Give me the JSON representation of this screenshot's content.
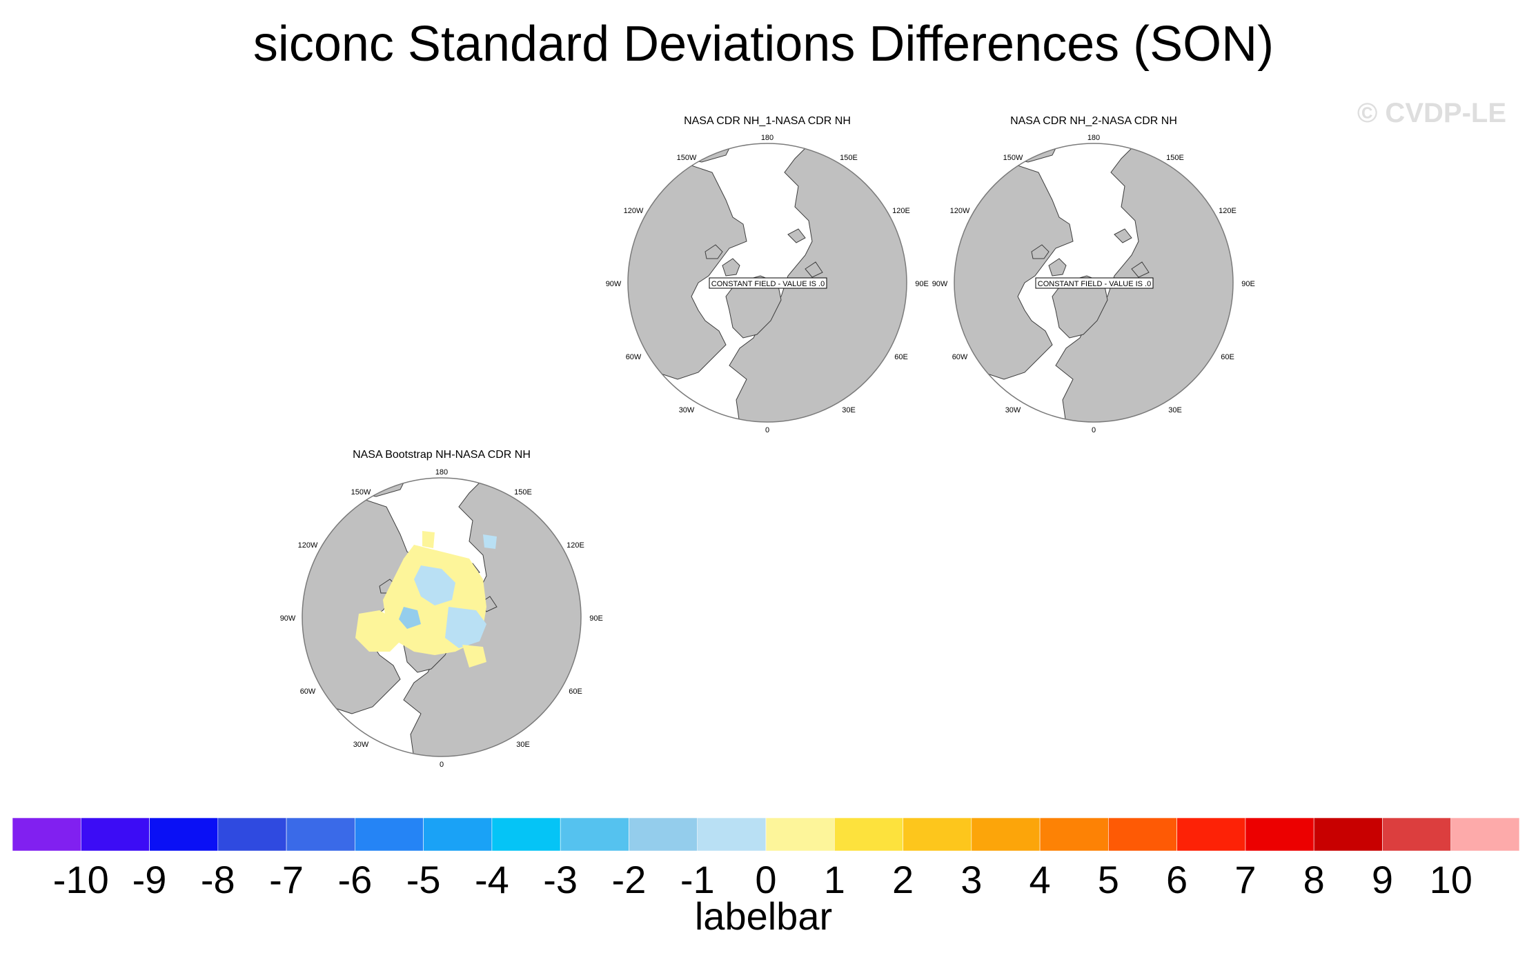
{
  "title": "siconc Standard Deviations Differences (SON)",
  "watermark": "© CVDP-LE",
  "panels": [
    {
      "title": "NASA CDR NH_1-NASA CDR NH",
      "note": "CONSTANT FIELD - VALUE IS .0"
    },
    {
      "title": "NASA CDR NH_2-NASA CDR NH",
      "note": "CONSTANT FIELD - VALUE IS .0"
    },
    {
      "title": "NASA Bootstrap NH-NASA CDR NH",
      "note": ""
    }
  ],
  "lon_labels": [
    "180",
    "150E",
    "120E",
    "90E",
    "60E",
    "30E",
    "0",
    "30W",
    "60W",
    "90W",
    "120W",
    "150W"
  ],
  "colorbar": {
    "title": "labelbar",
    "labels": [
      "-10",
      "-9",
      "-8",
      "-7",
      "-6",
      "-5",
      "-4",
      "-3",
      "-2",
      "-1",
      "0",
      "1",
      "2",
      "3",
      "4",
      "5",
      "6",
      "7",
      "8",
      "9",
      "10"
    ],
    "colors": [
      "#8120f0",
      "#3c0cf5",
      "#0a10f5",
      "#2f4ae0",
      "#3a6ae8",
      "#2584f5",
      "#1aa2f6",
      "#05c4f6",
      "#55c2ef",
      "#94cdec",
      "#b9e0f4",
      "#fdf59a",
      "#fde23d",
      "#fdc61c",
      "#fca50a",
      "#fd8205",
      "#fe5a05",
      "#fd2206",
      "#ec0000",
      "#c80000",
      "#dc3e3e",
      "#fdaaaa"
    ]
  },
  "colors": {
    "land": "#c0c0c0",
    "ocean": "#ffffff",
    "coast": "#3c3c3c"
  }
}
